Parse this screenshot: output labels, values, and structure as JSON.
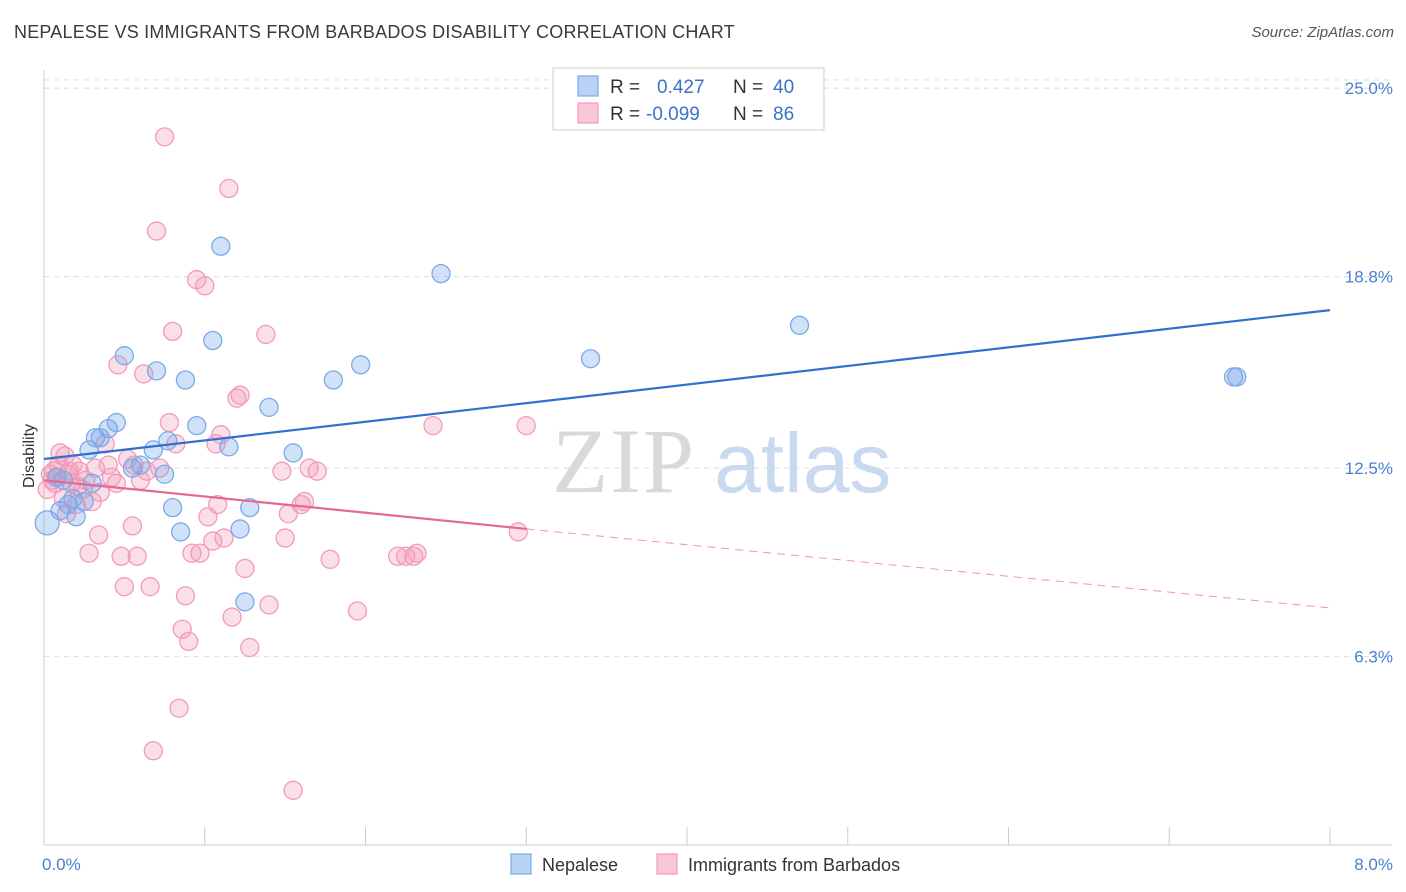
{
  "title": "NEPALESE VS IMMIGRANTS FROM BARBADOS DISABILITY CORRELATION CHART",
  "source": "Source: ZipAtlas.com",
  "watermark": {
    "zip": "ZIP",
    "atlas": "atlas"
  },
  "colors": {
    "nepalese": "#7aaae8",
    "barbados": "#f39ab9",
    "nepalese_line": "#2f70d0",
    "barbados_line": "#e46794",
    "tick": "#4a7fd0",
    "grid": "#dddddd"
  },
  "legend": {
    "rows": [
      {
        "r_label": "R = ",
        "r_value": "0.427",
        "n_label": "N = ",
        "n_value": "40"
      },
      {
        "r_label": "R = ",
        "r_value": "-0.099",
        "n_label": "N = ",
        "n_value": "86"
      }
    ]
  },
  "chart_data": {
    "type": "scatter",
    "title": "NEPALESE VS IMMIGRANTS FROM BARBADOS DISABILITY CORRELATION CHART",
    "xlabel": "",
    "ylabel": "Disability",
    "xlim": [
      0,
      8
    ],
    "ylim": [
      0.1,
      25.6
    ],
    "x_tick_labels": [
      {
        "value": 0,
        "label": "0.0%"
      },
      {
        "value": 8,
        "label": "8.0%"
      }
    ],
    "y_tick_labels": [
      {
        "value": 6.3,
        "label": "6.3%"
      },
      {
        "value": 12.5,
        "label": "12.5%"
      },
      {
        "value": 18.8,
        "label": "18.8%"
      },
      {
        "value": 25.0,
        "label": "25.0%"
      }
    ],
    "grid": true,
    "legend_position": "top-center",
    "series": [
      {
        "name": "Nepalese",
        "r": 0.427,
        "n": 40,
        "trend": {
          "x": [
            0,
            8
          ],
          "y": [
            12.8,
            17.7
          ]
        },
        "points": [
          [
            0.02,
            10.7
          ],
          [
            0.1,
            11.1
          ],
          [
            0.15,
            11.3
          ],
          [
            0.2,
            10.9
          ],
          [
            0.25,
            11.4
          ],
          [
            0.08,
            12.2
          ],
          [
            0.12,
            12.1
          ],
          [
            0.18,
            11.5
          ],
          [
            0.3,
            12.0
          ],
          [
            0.35,
            13.5
          ],
          [
            0.28,
            13.1
          ],
          [
            0.32,
            13.5
          ],
          [
            0.4,
            13.8
          ],
          [
            0.45,
            14.0
          ],
          [
            0.5,
            16.2
          ],
          [
            0.55,
            12.5
          ],
          [
            0.6,
            12.6
          ],
          [
            0.68,
            13.1
          ],
          [
            0.7,
            15.7
          ],
          [
            0.75,
            12.3
          ],
          [
            0.77,
            13.4
          ],
          [
            0.8,
            11.2
          ],
          [
            0.85,
            10.4
          ],
          [
            0.88,
            15.4
          ],
          [
            0.95,
            13.9
          ],
          [
            1.05,
            16.7
          ],
          [
            1.1,
            19.8
          ],
          [
            1.15,
            13.2
          ],
          [
            1.22,
            10.5
          ],
          [
            1.25,
            8.1
          ],
          [
            1.28,
            11.2
          ],
          [
            1.4,
            14.5
          ],
          [
            1.55,
            13.0
          ],
          [
            1.8,
            15.4
          ],
          [
            1.97,
            15.9
          ],
          [
            2.47,
            18.9
          ],
          [
            3.4,
            16.1
          ],
          [
            4.7,
            17.2
          ],
          [
            7.4,
            15.5
          ],
          [
            7.42,
            15.5
          ]
        ]
      },
      {
        "name": "Immigrants from Barbados",
        "r": -0.099,
        "n": 86,
        "trend": {
          "x": [
            0,
            3.0
          ],
          "y": [
            12.1,
            10.5
          ]
        },
        "trend_dashed": {
          "x": [
            3.0,
            8
          ],
          "y": [
            10.5,
            7.9
          ]
        },
        "points": [
          [
            0.02,
            11.8
          ],
          [
            0.04,
            12.3
          ],
          [
            0.05,
            12.1
          ],
          [
            0.06,
            12.4
          ],
          [
            0.07,
            12.0
          ],
          [
            0.08,
            12.2
          ],
          [
            0.09,
            12.6
          ],
          [
            0.1,
            13.0
          ],
          [
            0.12,
            11.5
          ],
          [
            0.14,
            11.0
          ],
          [
            0.15,
            12.3
          ],
          [
            0.17,
            12.0
          ],
          [
            0.18,
            12.6
          ],
          [
            0.2,
            11.3
          ],
          [
            0.22,
            12.4
          ],
          [
            0.24,
            11.8
          ],
          [
            0.26,
            12.1
          ],
          [
            0.28,
            9.7
          ],
          [
            0.3,
            11.4
          ],
          [
            0.32,
            12.5
          ],
          [
            0.34,
            10.3
          ],
          [
            0.35,
            11.7
          ],
          [
            0.38,
            13.3
          ],
          [
            0.4,
            12.6
          ],
          [
            0.42,
            12.2
          ],
          [
            0.45,
            12.0
          ],
          [
            0.46,
            15.9
          ],
          [
            0.48,
            9.6
          ],
          [
            0.5,
            8.6
          ],
          [
            0.52,
            12.8
          ],
          [
            0.55,
            10.6
          ],
          [
            0.56,
            12.6
          ],
          [
            0.58,
            9.6
          ],
          [
            0.6,
            12.1
          ],
          [
            0.62,
            15.6
          ],
          [
            0.64,
            12.4
          ],
          [
            0.66,
            8.6
          ],
          [
            0.68,
            3.2
          ],
          [
            0.7,
            20.3
          ],
          [
            0.72,
            12.5
          ],
          [
            0.75,
            23.4
          ],
          [
            0.78,
            14.0
          ],
          [
            0.8,
            17.0
          ],
          [
            0.82,
            13.3
          ],
          [
            0.84,
            4.6
          ],
          [
            0.86,
            7.2
          ],
          [
            0.88,
            8.3
          ],
          [
            0.9,
            6.8
          ],
          [
            0.92,
            9.7
          ],
          [
            0.95,
            18.7
          ],
          [
            0.97,
            9.7
          ],
          [
            1.0,
            18.5
          ],
          [
            1.02,
            10.9
          ],
          [
            1.05,
            10.1
          ],
          [
            1.07,
            13.3
          ],
          [
            1.08,
            11.3
          ],
          [
            1.1,
            13.6
          ],
          [
            1.12,
            10.2
          ],
          [
            1.15,
            21.7
          ],
          [
            1.17,
            7.6
          ],
          [
            1.2,
            14.8
          ],
          [
            1.22,
            14.9
          ],
          [
            1.25,
            9.2
          ],
          [
            1.28,
            6.6
          ],
          [
            1.38,
            16.9
          ],
          [
            1.4,
            8.0
          ],
          [
            1.48,
            12.4
          ],
          [
            1.5,
            10.2
          ],
          [
            1.52,
            11.0
          ],
          [
            1.55,
            1.9
          ],
          [
            1.6,
            11.3
          ],
          [
            1.62,
            11.4
          ],
          [
            1.65,
            12.5
          ],
          [
            1.7,
            12.4
          ],
          [
            1.78,
            9.5
          ],
          [
            1.95,
            7.8
          ],
          [
            2.2,
            9.6
          ],
          [
            2.25,
            9.6
          ],
          [
            2.3,
            9.6
          ],
          [
            2.32,
            9.7
          ],
          [
            2.42,
            13.9
          ],
          [
            2.95,
            10.4
          ],
          [
            3.0,
            13.9
          ],
          [
            0.13,
            12.9
          ],
          [
            0.16,
            12.4
          ],
          [
            0.21,
            11.9
          ]
        ]
      }
    ]
  },
  "bottom_legend": {
    "items": [
      {
        "label": "Nepalese"
      },
      {
        "label": "Immigrants from Barbados"
      }
    ]
  }
}
